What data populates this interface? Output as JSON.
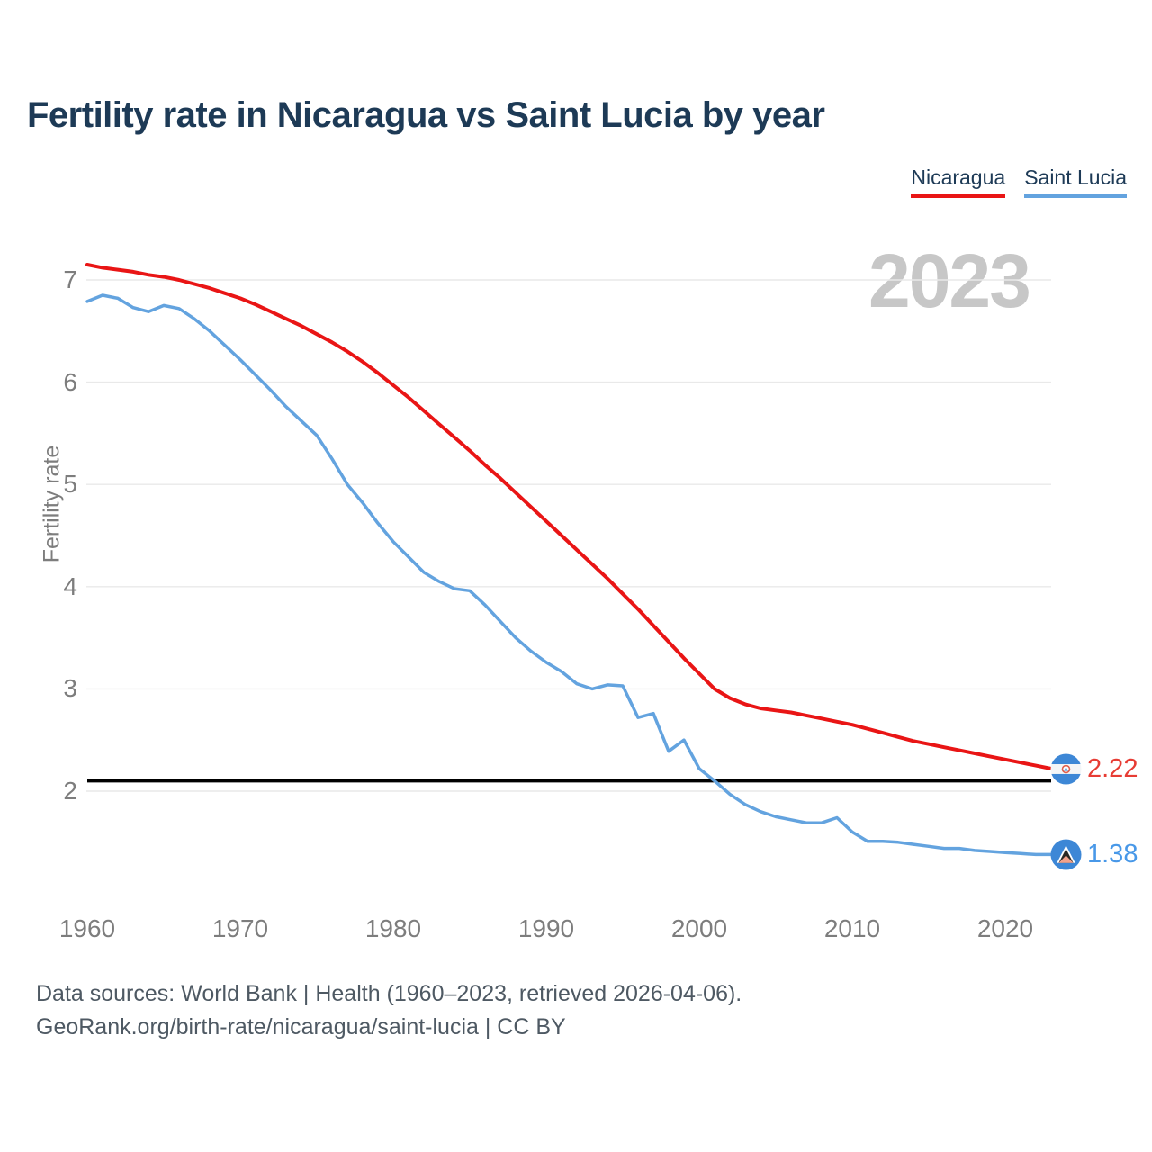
{
  "title": "Fertility rate in Nicaragua vs Saint Lucia by year",
  "watermark": "2023",
  "legend": [
    {
      "label": "Nicaragua",
      "color": "#e91515"
    },
    {
      "label": "Saint Lucia",
      "color": "#63a3df"
    }
  ],
  "y_axis": {
    "label": "Fertility rate",
    "ticks": [
      7,
      6,
      5,
      4,
      3,
      2
    ]
  },
  "x_axis": {
    "ticks": [
      1960,
      1970,
      1980,
      1990,
      2000,
      2010,
      2020
    ]
  },
  "reference_line": {
    "value": 2.1,
    "color": "#000000"
  },
  "end_labels": [
    {
      "series": "Nicaragua",
      "value": "2.22",
      "color": "#e73c34",
      "flag": "nicaragua-flag"
    },
    {
      "series": "Saint Lucia",
      "value": "1.38",
      "color": "#4898e8",
      "flag": "saint-lucia-flag"
    }
  ],
  "footer": {
    "line1": "Data sources: World Bank | Health (1960–2023, retrieved 2026-04-06).",
    "line2": "GeoRank.org/birth-rate/nicaragua/saint-lucia | CC BY"
  },
  "colors": {
    "title": "#1d3a56",
    "axis_text": "#7d7d7d",
    "grid": "#e9e9e9",
    "watermark": "#c7c7c7",
    "footer": "#4e5963"
  },
  "chart_data": {
    "type": "line",
    "title": "Fertility rate in Nicaragua vs Saint Lucia by year",
    "xlabel": "",
    "ylabel": "Fertility rate",
    "xlim": [
      1960,
      2023
    ],
    "ylim": [
      1.3,
      7.3
    ],
    "grid": true,
    "legend_position": "top-right",
    "annotations": {
      "reference_line_y": 2.1,
      "watermark": "2023"
    },
    "x": [
      1960,
      1961,
      1962,
      1963,
      1964,
      1965,
      1966,
      1967,
      1968,
      1969,
      1970,
      1971,
      1972,
      1973,
      1974,
      1975,
      1976,
      1977,
      1978,
      1979,
      1980,
      1981,
      1982,
      1983,
      1984,
      1985,
      1986,
      1987,
      1988,
      1989,
      1990,
      1991,
      1992,
      1993,
      1994,
      1995,
      1996,
      1997,
      1998,
      1999,
      2000,
      2001,
      2002,
      2003,
      2004,
      2005,
      2006,
      2007,
      2008,
      2009,
      2010,
      2011,
      2012,
      2013,
      2014,
      2015,
      2016,
      2017,
      2018,
      2019,
      2020,
      2021,
      2022,
      2023
    ],
    "series": [
      {
        "name": "Nicaragua",
        "color": "#e91515",
        "end_value": 2.22,
        "values": [
          7.15,
          7.12,
          7.1,
          7.08,
          7.05,
          7.03,
          7.0,
          6.96,
          6.92,
          6.87,
          6.82,
          6.76,
          6.69,
          6.62,
          6.55,
          6.47,
          6.39,
          6.3,
          6.2,
          6.09,
          5.97,
          5.85,
          5.72,
          5.59,
          5.46,
          5.33,
          5.19,
          5.06,
          4.92,
          4.78,
          4.64,
          4.5,
          4.36,
          4.22,
          4.08,
          3.93,
          3.78,
          3.62,
          3.46,
          3.3,
          3.15,
          3.0,
          2.91,
          2.85,
          2.81,
          2.79,
          2.77,
          2.74,
          2.71,
          2.68,
          2.65,
          2.61,
          2.57,
          2.53,
          2.49,
          2.46,
          2.43,
          2.4,
          2.37,
          2.34,
          2.31,
          2.28,
          2.25,
          2.22
        ]
      },
      {
        "name": "Saint Lucia",
        "color": "#63a3df",
        "end_value": 1.38,
        "values": [
          6.79,
          6.85,
          6.82,
          6.73,
          6.69,
          6.75,
          6.72,
          6.62,
          6.5,
          6.36,
          6.22,
          6.07,
          5.92,
          5.76,
          5.62,
          5.48,
          5.25,
          5.0,
          4.82,
          4.62,
          4.44,
          4.29,
          4.14,
          4.05,
          3.98,
          3.96,
          3.82,
          3.66,
          3.5,
          3.37,
          3.26,
          3.17,
          3.05,
          3.0,
          3.04,
          3.03,
          2.72,
          2.76,
          2.39,
          2.5,
          2.22,
          2.1,
          1.97,
          1.87,
          1.8,
          1.75,
          1.72,
          1.69,
          1.69,
          1.74,
          1.6,
          1.51,
          1.51,
          1.5,
          1.48,
          1.46,
          1.44,
          1.44,
          1.42,
          1.41,
          1.4,
          1.39,
          1.38,
          1.38
        ]
      }
    ]
  }
}
